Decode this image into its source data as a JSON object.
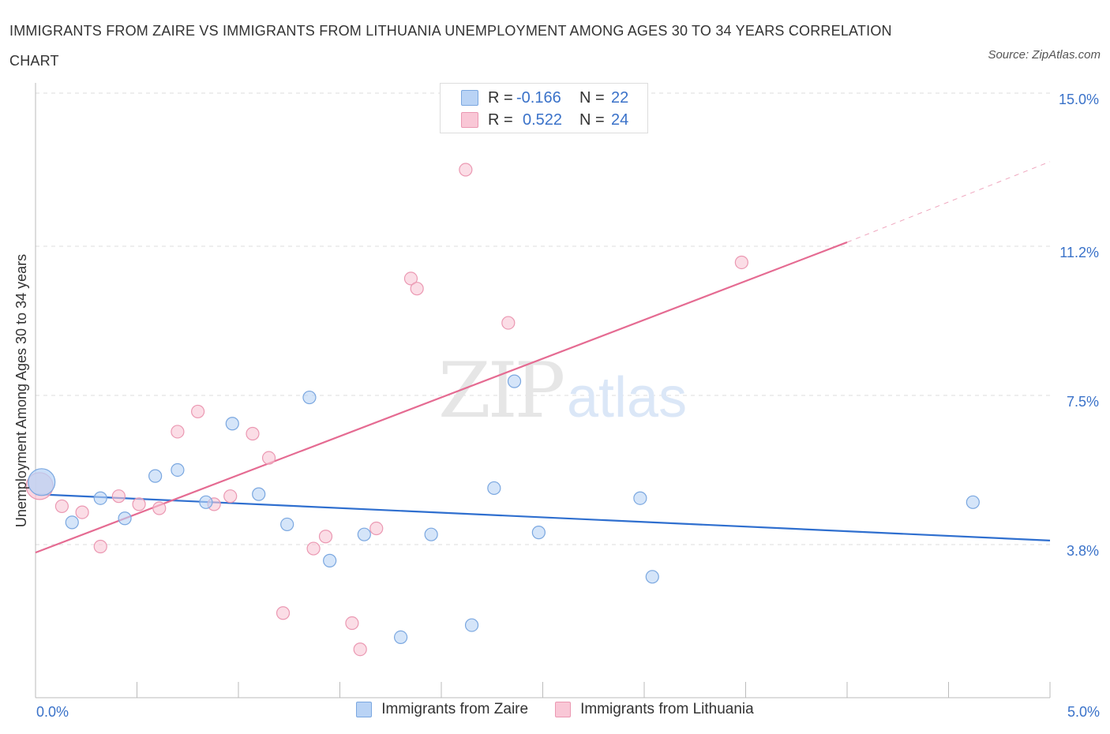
{
  "title": "IMMIGRANTS FROM ZAIRE VS IMMIGRANTS FROM LITHUANIA UNEMPLOYMENT AMONG AGES 30 TO 34 YEARS CORRELATION CHART",
  "source": "Source: ZipAtlas.com",
  "legend": {
    "rows": [
      {
        "r_label": "R =",
        "r_value": "-0.166",
        "n_label": "N =",
        "n_value": "22"
      },
      {
        "r_label": "R =",
        "r_value": "0.522",
        "n_label": "N =",
        "n_value": "24"
      }
    ]
  },
  "colors": {
    "zaire_fill": "#b9d3f5",
    "zaire_stroke": "#7aa7e0",
    "zaire_line": "#2f6fcf",
    "lithuania_fill": "#f9c7d6",
    "lithuania_stroke": "#eb98b2",
    "lithuania_line": "#e56b92",
    "tick_label": "#3a72c9"
  },
  "chart_data": {
    "type": "scatter",
    "title": "IMMIGRANTS FROM ZAIRE VS IMMIGRANTS FROM LITHUANIA UNEMPLOYMENT AMONG AGES 30 TO 34 YEARS CORRELATION CHART",
    "xlabel": "",
    "ylabel": "Unemployment Among Ages 30 to 34 years",
    "xlim": [
      0,
      5
    ],
    "ylim": [
      0,
      15
    ],
    "x_tick_labels": [
      "0.0%",
      "5.0%"
    ],
    "y_ticks": [
      3.8,
      7.5,
      11.2,
      15.0
    ],
    "y_tick_labels": [
      "3.8%",
      "7.5%",
      "11.2%",
      "15.0%"
    ],
    "grid": true,
    "watermark": {
      "zip": "ZIP",
      "atlas": "atlas"
    },
    "series": [
      {
        "name": "Immigrants from Zaire",
        "r": -0.166,
        "n": 22,
        "points": [
          {
            "x": 0.03,
            "y": 5.35,
            "big": true
          },
          {
            "x": 0.18,
            "y": 4.35
          },
          {
            "x": 0.32,
            "y": 4.95
          },
          {
            "x": 0.44,
            "y": 4.45
          },
          {
            "x": 0.59,
            "y": 5.5
          },
          {
            "x": 0.7,
            "y": 5.65
          },
          {
            "x": 0.84,
            "y": 4.85
          },
          {
            "x": 0.97,
            "y": 6.8
          },
          {
            "x": 1.1,
            "y": 5.05
          },
          {
            "x": 1.24,
            "y": 4.3
          },
          {
            "x": 1.35,
            "y": 7.45
          },
          {
            "x": 1.45,
            "y": 3.4
          },
          {
            "x": 1.62,
            "y": 4.05
          },
          {
            "x": 1.8,
            "y": 1.5
          },
          {
            "x": 1.95,
            "y": 4.05
          },
          {
            "x": 2.15,
            "y": 1.8
          },
          {
            "x": 2.26,
            "y": 5.2
          },
          {
            "x": 2.36,
            "y": 7.85
          },
          {
            "x": 2.48,
            "y": 4.1
          },
          {
            "x": 2.98,
            "y": 4.95
          },
          {
            "x": 3.04,
            "y": 3.0
          },
          {
            "x": 4.62,
            "y": 4.85
          }
        ],
        "trend": {
          "x1": 0.0,
          "y1": 5.05,
          "x2": 5.0,
          "y2": 3.9
        }
      },
      {
        "name": "Immigrants from Lithuania",
        "r": 0.522,
        "n": 24,
        "points": [
          {
            "x": 0.02,
            "y": 5.25,
            "big": true
          },
          {
            "x": 0.13,
            "y": 4.75
          },
          {
            "x": 0.23,
            "y": 4.6
          },
          {
            "x": 0.32,
            "y": 3.75
          },
          {
            "x": 0.41,
            "y": 5.0
          },
          {
            "x": 0.51,
            "y": 4.8
          },
          {
            "x": 0.61,
            "y": 4.7
          },
          {
            "x": 0.7,
            "y": 6.6
          },
          {
            "x": 0.8,
            "y": 7.1
          },
          {
            "x": 0.88,
            "y": 4.8
          },
          {
            "x": 0.96,
            "y": 5.0
          },
          {
            "x": 1.07,
            "y": 6.55
          },
          {
            "x": 1.15,
            "y": 5.95
          },
          {
            "x": 1.22,
            "y": 2.1
          },
          {
            "x": 1.37,
            "y": 3.7
          },
          {
            "x": 1.43,
            "y": 4.0
          },
          {
            "x": 1.56,
            "y": 1.85
          },
          {
            "x": 1.6,
            "y": 1.2
          },
          {
            "x": 1.68,
            "y": 4.2
          },
          {
            "x": 1.85,
            "y": 10.4
          },
          {
            "x": 1.88,
            "y": 10.15
          },
          {
            "x": 2.12,
            "y": 13.1
          },
          {
            "x": 2.33,
            "y": 9.3
          },
          {
            "x": 3.48,
            "y": 10.8
          }
        ],
        "trend": {
          "x1": 0.0,
          "y1": 3.6,
          "x2": 4.0,
          "y2": 11.3
        },
        "trend_extension": {
          "x1": 4.0,
          "y1": 11.3,
          "x2": 5.0,
          "y2": 13.3
        }
      }
    ]
  }
}
